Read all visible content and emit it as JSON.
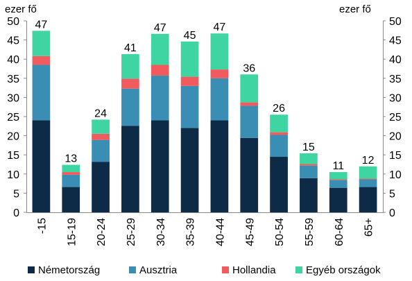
{
  "chart_data": {
    "type": "bar",
    "stacked": true,
    "unit_left": "ezer fő",
    "unit_right": "ezer fő",
    "categories": [
      "-15",
      "15-19",
      "20-24",
      "25-29",
      "30-34",
      "35-39",
      "40-44",
      "45-49",
      "50-54",
      "55-59",
      "60-64",
      "65+"
    ],
    "series": [
      {
        "name": "Németország",
        "color": "#0d2a47",
        "values": [
          24,
          6.6,
          13.2,
          22.6,
          24,
          22,
          24,
          19.4,
          14.5,
          8.9,
          6.4,
          6.6
        ]
      },
      {
        "name": "Ausztria",
        "color": "#3a8db3",
        "values": [
          14.5,
          3.2,
          5.7,
          9.7,
          11.7,
          11,
          11,
          8.4,
          5.7,
          3.3,
          2,
          2
        ]
      },
      {
        "name": "Hollandia",
        "color": "#f25b5e",
        "values": [
          2.3,
          0.7,
          1.6,
          2.6,
          2.8,
          2.4,
          2.3,
          0.9,
          0.7,
          0.4,
          0.2,
          0.2
        ]
      },
      {
        "name": "Egyéb országok",
        "color": "#3fd5a3",
        "values": [
          6.6,
          1.9,
          3.7,
          6.4,
          8.1,
          9.2,
          9.4,
          7.3,
          4.6,
          2.8,
          1.9,
          3.2
        ]
      }
    ],
    "totals": [
      "47",
      "13",
      "24",
      "41",
      "47",
      "45",
      "47",
      "36",
      "26",
      "15",
      "11",
      "12"
    ],
    "ylim": [
      0,
      50
    ],
    "yticks": [
      "0",
      "5",
      "10",
      "15",
      "20",
      "25",
      "30",
      "35",
      "40",
      "45",
      "50"
    ],
    "grid": false,
    "legend_position": "bottom"
  }
}
